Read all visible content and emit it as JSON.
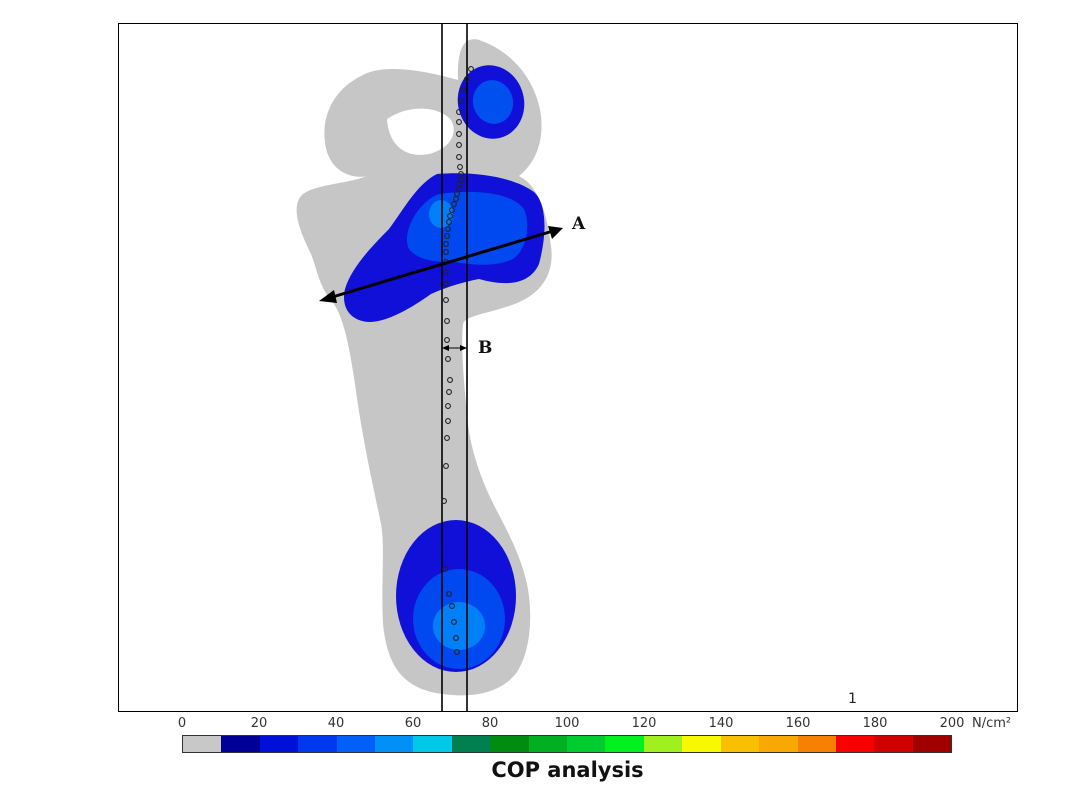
{
  "figure": {
    "annotation_a": "A",
    "annotation_b": "B",
    "frame_number": "1",
    "caption": "COP analysis"
  },
  "color_scale": {
    "ticks": [
      "0",
      "20",
      "40",
      "60",
      "80",
      "100",
      "120",
      "140",
      "160",
      "180",
      "200"
    ],
    "unit": "N/cm²",
    "colors": [
      "#c8c8c8",
      "#000099",
      "#0010d8",
      "#0038f0",
      "#0060f8",
      "#0090f8",
      "#00c8e8",
      "#008050",
      "#008c10",
      "#00b020",
      "#00cc30",
      "#00f020",
      "#a0f020",
      "#f8f800",
      "#f8c000",
      "#f8a800",
      "#f88000",
      "#f80000",
      "#d00000",
      "#a00000"
    ]
  }
}
